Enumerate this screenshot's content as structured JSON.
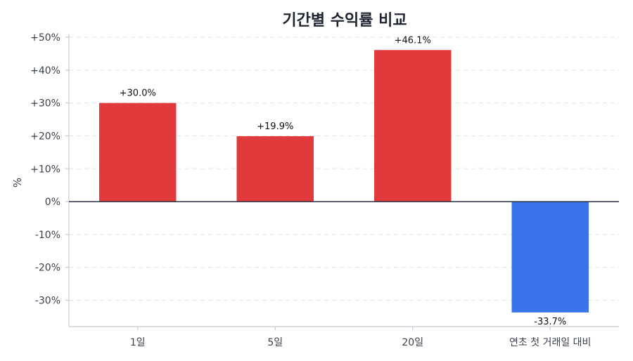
{
  "chart_data": {
    "type": "bar",
    "title": "기간별 수익률 비교",
    "xlabel": "",
    "ylabel": "%",
    "categories": [
      "1일",
      "5일",
      "20일",
      "연초 첫 거래일 대비"
    ],
    "values": [
      30.0,
      19.9,
      46.1,
      -33.7
    ],
    "value_labels": [
      "+30.0%",
      "+19.9%",
      "+46.1%",
      "-33.7%"
    ],
    "ylim": [
      -38,
      50
    ],
    "yticks": [
      -30,
      -20,
      -10,
      0,
      10,
      20,
      30,
      40,
      50
    ],
    "ytick_labels": [
      "-30%",
      "-20%",
      "-10%",
      "0%",
      "+10%",
      "+20%",
      "+30%",
      "+40%",
      "+50%"
    ],
    "grid": true,
    "legend": "none",
    "colors": {
      "positive": "#e03a3c",
      "negative": "#3b73ea"
    }
  }
}
